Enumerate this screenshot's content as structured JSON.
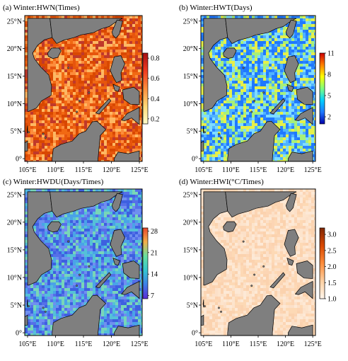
{
  "figure": {
    "panels": [
      {
        "id": "a",
        "title": "(a)  Winter:HWN(Times)",
        "x_ticks": [
          "105°E",
          "110°E",
          "115°E",
          "120°E",
          "125°E"
        ],
        "y_ticks": [
          "0°",
          "5°N",
          "10°N",
          "15°N",
          "20°N",
          "25°N"
        ],
        "colorbar": {
          "range": [
            0.15,
            0.85
          ],
          "ticks": [
            "0.2",
            "0.4",
            "0.6",
            "0.8"
          ],
          "tick_values": [
            0.2,
            0.4,
            0.6,
            0.8
          ],
          "colors": [
            "#ffffcc",
            "#fed976",
            "#fd8d3c",
            "#f03b20",
            "#a50f15"
          ]
        },
        "field_colors": [
          "#fdb863",
          "#fd8d3c",
          "#f16913",
          "#e6550d",
          "#d94801",
          "#c0392b"
        ]
      },
      {
        "id": "b",
        "title": "(b)  Winter:HWT(Days)",
        "x_ticks": [
          "105°E",
          "110°E",
          "115°E",
          "120°E",
          "125°E"
        ],
        "y_ticks": [
          "0°",
          "5°N",
          "10°N",
          "15°N",
          "20°N",
          "25°N"
        ],
        "colorbar": {
          "range": [
            1,
            11
          ],
          "ticks": [
            "11",
            "8",
            "5",
            "2"
          ],
          "tick_values": [
            11,
            8,
            5,
            2
          ],
          "colors": [
            "#0000aa",
            "#1f78ff",
            "#00d0ff",
            "#7fff7f",
            "#ffff00",
            "#ff8000",
            "#cc0000"
          ]
        },
        "field_colors": [
          "#1f78ff",
          "#4fb3ff",
          "#7fdcff",
          "#a6f07a",
          "#e6f04a",
          "#2b83ff"
        ]
      },
      {
        "id": "c",
        "title": "(c)  Winter:HWDU(Days/Times)",
        "x_ticks": [
          "105°E",
          "110°E",
          "115°E",
          "120°E",
          "125°E"
        ],
        "y_ticks": [
          "0°",
          "5°N",
          "10°N",
          "15°N",
          "20°N",
          "25°N"
        ],
        "colorbar": {
          "range": [
            6,
            29
          ],
          "ticks": [
            "28",
            "21",
            "14",
            "7"
          ],
          "tick_values": [
            28,
            21,
            14,
            7
          ],
          "colors": [
            "#5b2bd6",
            "#3f7fe8",
            "#33c7d0",
            "#66e0a0",
            "#f4b04a",
            "#e8452c"
          ]
        },
        "field_colors": [
          "#4aa3e8",
          "#55c0d8",
          "#6f8ff0",
          "#5570e8",
          "#78d6b8",
          "#3d60e0"
        ]
      },
      {
        "id": "d",
        "title": "(d)  Winter:HWI(°C/Times)",
        "x_ticks": [
          "105°E",
          "110°E",
          "115°E",
          "120°E",
          "125°E"
        ],
        "y_ticks": [
          "0°",
          "5°N",
          "10°N",
          "15°N",
          "20°N",
          "25°N"
        ],
        "colorbar": {
          "range": [
            1.0,
            3.2
          ],
          "ticks": [
            "3.0",
            "2.5",
            "2.0",
            "1.5",
            "1.0"
          ],
          "tick_values": [
            3.0,
            2.5,
            2.0,
            1.5,
            1.0
          ],
          "colors": [
            "#fff5eb",
            "#fdd0a2",
            "#fd8d3c",
            "#d94801",
            "#7f2704"
          ]
        },
        "field_colors": [
          "#fde4cc",
          "#fdd9b5",
          "#fce0c8",
          "#fbd2ae",
          "#fde9d6",
          "#fcd5b4"
        ]
      }
    ],
    "land_color": "#7f7f7f"
  }
}
